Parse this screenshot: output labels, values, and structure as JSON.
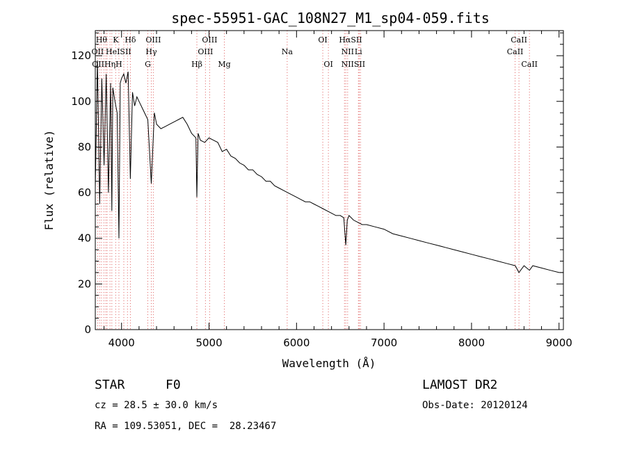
{
  "chart_data": {
    "type": "line",
    "title": "spec-55951-GAC_108N27_M1_sp04-059.fits",
    "xlabel": "Wavelength (Å)",
    "ylabel": "Flux (relative)",
    "xlim": [
      3700,
      9050
    ],
    "ylim": [
      0,
      131
    ],
    "x_ticks": [
      4000,
      5000,
      6000,
      7000,
      8000,
      9000
    ],
    "x_tick_labels": [
      "4000",
      "5000",
      "6000",
      "7000",
      "8000",
      "9000"
    ],
    "y_ticks": [
      0,
      20,
      40,
      60,
      80,
      100,
      120
    ],
    "y_tick_labels": [
      "0",
      "20",
      "40",
      "60",
      "80",
      "100",
      "120"
    ],
    "grid": false,
    "series": [
      {
        "x": [
          3700,
          3725,
          3750,
          3775,
          3800,
          3825,
          3850,
          3875,
          3889,
          3900,
          3925,
          3950,
          3970,
          3985,
          4000,
          4025,
          4050,
          4075,
          4101,
          4125,
          4150,
          4175,
          4200,
          4250,
          4300,
          4340,
          4375,
          4400,
          4450,
          4500,
          4550,
          4600,
          4650,
          4700,
          4750,
          4800,
          4850,
          4861,
          4875,
          4900,
          4950,
          5000,
          5050,
          5100,
          5150,
          5200,
          5250,
          5300,
          5350,
          5400,
          5450,
          5500,
          5550,
          5600,
          5650,
          5700,
          5750,
          5800,
          5850,
          5900,
          5950,
          6000,
          6050,
          6100,
          6150,
          6200,
          6250,
          6300,
          6350,
          6400,
          6450,
          6500,
          6540,
          6563,
          6580,
          6600,
          6650,
          6700,
          6750,
          6800,
          6900,
          7000,
          7100,
          7200,
          7300,
          7400,
          7500,
          7600,
          7700,
          7800,
          7900,
          8000,
          8100,
          8200,
          8300,
          8400,
          8500,
          8542,
          8600,
          8662,
          8700,
          8800,
          8900,
          9000,
          9050
        ],
        "y": [
          62,
          118,
          55,
          110,
          72,
          112,
          60,
          108,
          52,
          106,
          100,
          95,
          40,
          108,
          110,
          112,
          108,
          113,
          66,
          104,
          98,
          102,
          100,
          96,
          92,
          64,
          95,
          90,
          88,
          89,
          90,
          91,
          92,
          93,
          90,
          86,
          84,
          58,
          86,
          83,
          82,
          84,
          83,
          82,
          78,
          79,
          76,
          75,
          73,
          72,
          70,
          70,
          68,
          67,
          65,
          65,
          63,
          62,
          61,
          60,
          59,
          58,
          57,
          56,
          56,
          55,
          54,
          53,
          52,
          51,
          50,
          50,
          49,
          37,
          48,
          50,
          48,
          47,
          46,
          46,
          45,
          44,
          42,
          41,
          40,
          39,
          38,
          37,
          36,
          35,
          34,
          33,
          32,
          31,
          30,
          29,
          28,
          25,
          28,
          26,
          28,
          27,
          26,
          25,
          25
        ]
      }
    ],
    "line_markers": {
      "positions": [
        3727,
        3750,
        3771,
        3798,
        3820,
        3835,
        3868,
        3889,
        3933,
        3970,
        4026,
        4068,
        4101,
        4300,
        4340,
        4363,
        4861,
        4959,
        5007,
        5175,
        5893,
        6300,
        6364,
        6548,
        6563,
        6584,
        6707,
        6717,
        6731,
        8498,
        8542,
        8662
      ],
      "labels": [
        {
          "text": "Hθ",
          "x": 3771,
          "row": 1
        },
        {
          "text": "K",
          "x": 3933,
          "row": 1
        },
        {
          "text": "Hδ",
          "x": 4101,
          "row": 1
        },
        {
          "text": "OIII",
          "x": 4363,
          "row": 1
        },
        {
          "text": "OIII",
          "x": 5007,
          "row": 1
        },
        {
          "text": "OI",
          "x": 6300,
          "row": 1
        },
        {
          "text": "HαSII",
          "x": 6617,
          "row": 1
        },
        {
          "text": "CaII",
          "x": 8542,
          "row": 1
        },
        {
          "text": "OII",
          "x": 3727,
          "row": 2
        },
        {
          "text": "HeISII",
          "x": 3965,
          "row": 2
        },
        {
          "text": "Hγ",
          "x": 4340,
          "row": 2
        },
        {
          "text": "OIII",
          "x": 4959,
          "row": 2
        },
        {
          "text": "Na",
          "x": 5893,
          "row": 2
        },
        {
          "text": "NII",
          "x": 6584,
          "row": 2
        },
        {
          "text": "Li",
          "x": 6707,
          "row": 2
        },
        {
          "text": "CaII",
          "x": 8498,
          "row": 2
        },
        {
          "text": "OIIHηH",
          "x": 3835,
          "row": 3
        },
        {
          "text": "G",
          "x": 4300,
          "row": 3
        },
        {
          "text": "Hβ",
          "x": 4861,
          "row": 3
        },
        {
          "text": "Mg",
          "x": 5175,
          "row": 3
        },
        {
          "text": "OI",
          "x": 6364,
          "row": 3
        },
        {
          "text": "NIISII",
          "x": 6648,
          "row": 3
        },
        {
          "text": "CaII",
          "x": 8662,
          "row": 3
        }
      ]
    },
    "colors": {
      "spectrum": "#000000",
      "line_markers": "#e06060",
      "axes": "#000000"
    }
  },
  "info": {
    "object_class": "STAR",
    "subclass": "F0",
    "survey": "LAMOST DR2",
    "redshift": "cz = 28.5 ± 30.0 km/s",
    "obs_date": "Obs-Date: 20120124",
    "coords": "RA = 109.53051, DEC =  28.23467"
  }
}
